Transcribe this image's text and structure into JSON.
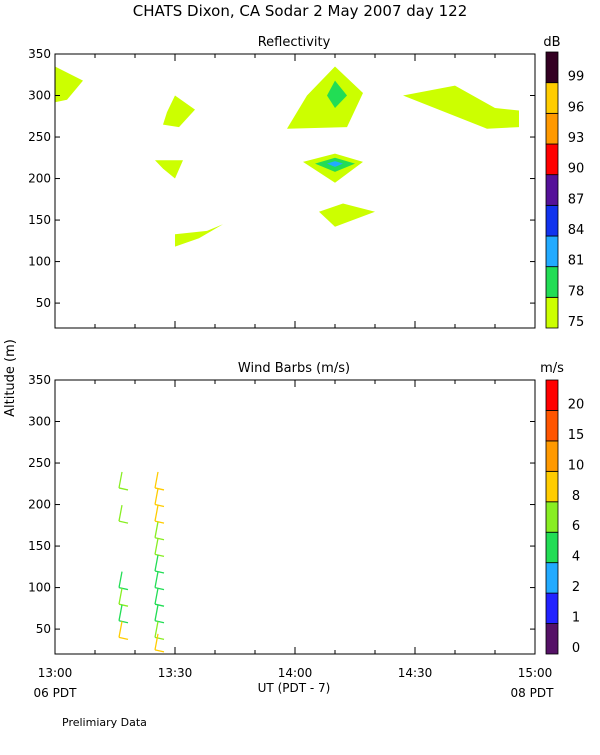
{
  "title": "CHATS Dixon, CA  Sodar    2 May 2007  day 122",
  "y_axis_label": "Altitude (m)",
  "x_axis_label": "UT  (PDT - 7)",
  "x_ticks": [
    "13:00",
    "13:30",
    "14:00",
    "14:30",
    "15:00"
  ],
  "x_sublabels": {
    "left": "06 PDT",
    "right": "08 PDT"
  },
  "footer_note": "Prelimiary Data",
  "colors": {
    "c1": "#ccff00",
    "c2": "#22dd55",
    "c3": "#22aaff",
    "c4": "#1133ee",
    "c5": "#551199",
    "c6": "#ff0000",
    "c7": "#ff9900",
    "c8": "#ffcc00",
    "c9": "#330022"
  },
  "chart_data": [
    {
      "type": "heatmap",
      "title": "Reflectivity",
      "colorbar_unit": "dB",
      "colorbar_labels": [
        "75",
        "78",
        "81",
        "84",
        "87",
        "90",
        "93",
        "96",
        "99"
      ],
      "colorbar_colors": [
        "#ccff00",
        "#22dd55",
        "#22aaff",
        "#1133ee",
        "#551199",
        "#ff0000",
        "#ff9900",
        "#ffcc00",
        "#330022"
      ],
      "xlim": [
        "13:00",
        "15:00"
      ],
      "ylim": [
        20,
        350
      ],
      "yticks": [
        50,
        100,
        150,
        200,
        250,
        300,
        350
      ],
      "blobs": [
        {
          "color": "#ccff00",
          "points": [
            [
              "13:00",
              335
            ],
            [
              "13:07",
              318
            ],
            [
              "13:03",
              295
            ],
            [
              "13:00",
              292
            ]
          ]
        },
        {
          "color": "#ccff00",
          "points": [
            [
              "13:28",
              280
            ],
            [
              "13:30",
              300
            ],
            [
              "13:35",
              283
            ],
            [
              "13:31",
              262
            ],
            [
              "13:27",
              265
            ]
          ]
        },
        {
          "color": "#ccff00",
          "points": [
            [
              "13:25",
              222
            ],
            [
              "13:32",
              222
            ],
            [
              "13:30",
              200
            ],
            [
              "13:27",
              212
            ]
          ]
        },
        {
          "color": "#ccff00",
          "points": [
            [
              "13:30",
              133
            ],
            [
              "13:38",
              137
            ],
            [
              "13:42",
              145
            ],
            [
              "13:36",
              128
            ],
            [
              "13:30",
              118
            ]
          ]
        },
        {
          "color": "#ccff00",
          "points": [
            [
              "13:58",
              260
            ],
            [
              "14:03",
              300
            ],
            [
              "14:10",
              335
            ],
            [
              "14:17",
              303
            ],
            [
              "14:13",
              262
            ]
          ]
        },
        {
          "color": "#ccff00",
          "points": [
            [
              "14:02",
              220
            ],
            [
              "14:10",
              230
            ],
            [
              "14:17",
              220
            ],
            [
              "14:10",
              195
            ]
          ]
        },
        {
          "color": "#ccff00",
          "points": [
            [
              "14:06",
              160
            ],
            [
              "14:12",
              170
            ],
            [
              "14:20",
              160
            ],
            [
              "14:10",
              142
            ]
          ]
        },
        {
          "color": "#ccff00",
          "points": [
            [
              "14:27",
              300
            ],
            [
              "14:40",
              312
            ],
            [
              "14:50",
              285
            ],
            [
              "14:56",
              282
            ],
            [
              "14:56",
              262
            ],
            [
              "14:48",
              260
            ]
          ]
        },
        {
          "color": "#22dd55",
          "points": [
            [
              "14:08",
              300
            ],
            [
              "14:10",
              318
            ],
            [
              "14:13",
              300
            ],
            [
              "14:10",
              285
            ]
          ]
        },
        {
          "color": "#22dd55",
          "points": [
            [
              "14:05",
              218
            ],
            [
              "14:10",
              225
            ],
            [
              "14:15",
              218
            ],
            [
              "14:10",
              208
            ]
          ]
        },
        {
          "color": "#22aaff",
          "points": [
            [
              "14:08",
              218
            ],
            [
              "14:10",
              221
            ],
            [
              "14:12",
              218
            ],
            [
              "14:10",
              214
            ]
          ]
        }
      ]
    },
    {
      "type": "wind_barbs",
      "title": "Wind Barbs (m/s)",
      "colorbar_unit": "m/s",
      "colorbar_labels": [
        "0",
        "1",
        "2",
        "4",
        "6",
        "8",
        "10",
        "15",
        "20"
      ],
      "colorbar_colors": [
        "#551166",
        "#2222ff",
        "#22aaff",
        "#22dd55",
        "#88ee22",
        "#ffcc00",
        "#ff9900",
        "#ff5500",
        "#ff0000"
      ],
      "xlim": [
        "13:00",
        "15:00"
      ],
      "ylim": [
        20,
        350
      ],
      "yticks": [
        50,
        100,
        150,
        200,
        250,
        300,
        350
      ],
      "barbs": [
        {
          "time": "13:16",
          "alt": 220,
          "color": "#88ee22"
        },
        {
          "time": "13:16",
          "alt": 180,
          "color": "#88ee22"
        },
        {
          "time": "13:16",
          "alt": 100,
          "color": "#22dd55"
        },
        {
          "time": "13:16",
          "alt": 80,
          "color": "#88ee22"
        },
        {
          "time": "13:16",
          "alt": 60,
          "color": "#22dd55"
        },
        {
          "time": "13:16",
          "alt": 40,
          "color": "#ffcc00"
        },
        {
          "time": "13:25",
          "alt": 220,
          "color": "#ffcc00"
        },
        {
          "time": "13:25",
          "alt": 200,
          "color": "#ffcc00"
        },
        {
          "time": "13:25",
          "alt": 180,
          "color": "#ffcc00"
        },
        {
          "time": "13:25",
          "alt": 160,
          "color": "#88ee22"
        },
        {
          "time": "13:25",
          "alt": 140,
          "color": "#88ee22"
        },
        {
          "time": "13:25",
          "alt": 120,
          "color": "#22dd55"
        },
        {
          "time": "13:25",
          "alt": 100,
          "color": "#22dd55"
        },
        {
          "time": "13:25",
          "alt": 80,
          "color": "#22dd55"
        },
        {
          "time": "13:25",
          "alt": 60,
          "color": "#22dd55"
        },
        {
          "time": "13:25",
          "alt": 40,
          "color": "#88ee22"
        },
        {
          "time": "13:25",
          "alt": 25,
          "color": "#ffcc00"
        }
      ]
    }
  ]
}
